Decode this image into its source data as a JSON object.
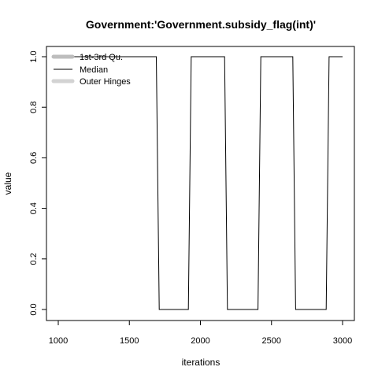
{
  "chart_data": {
    "type": "line",
    "title": "Government:'Government.subsidy_flag(int)'",
    "xlabel": "iterations",
    "ylabel": "value",
    "xlim": [
      1000,
      3000
    ],
    "ylim": [
      0,
      1
    ],
    "xticks": [
      1000,
      1500,
      2000,
      2500,
      3000
    ],
    "yticks": [
      0.0,
      0.2,
      0.4,
      0.6,
      0.8,
      1.0
    ],
    "ytick_labels": [
      "0.0",
      "0.2",
      "0.4",
      "0.6",
      "0.8",
      "1.0"
    ],
    "grid": false,
    "legend": {
      "position": "top-left",
      "entries": [
        {
          "label": "1st-3rd Qu.",
          "color": "#bdbdbd",
          "style": "thick"
        },
        {
          "label": "Median",
          "color": "#000000",
          "style": "thin"
        },
        {
          "label": "Outer Hinges",
          "color": "#d3d3d3",
          "style": "thick"
        }
      ]
    },
    "series": [
      {
        "name": "Median",
        "color": "#000000",
        "x": [
          1000,
          1690,
          1710,
          1915,
          1935,
          2170,
          2190,
          2405,
          2425,
          2650,
          2670,
          2885,
          2905,
          3000
        ],
        "y": [
          1,
          1,
          0,
          0,
          1,
          1,
          0,
          0,
          1,
          1,
          0,
          0,
          1,
          1
        ]
      }
    ]
  }
}
